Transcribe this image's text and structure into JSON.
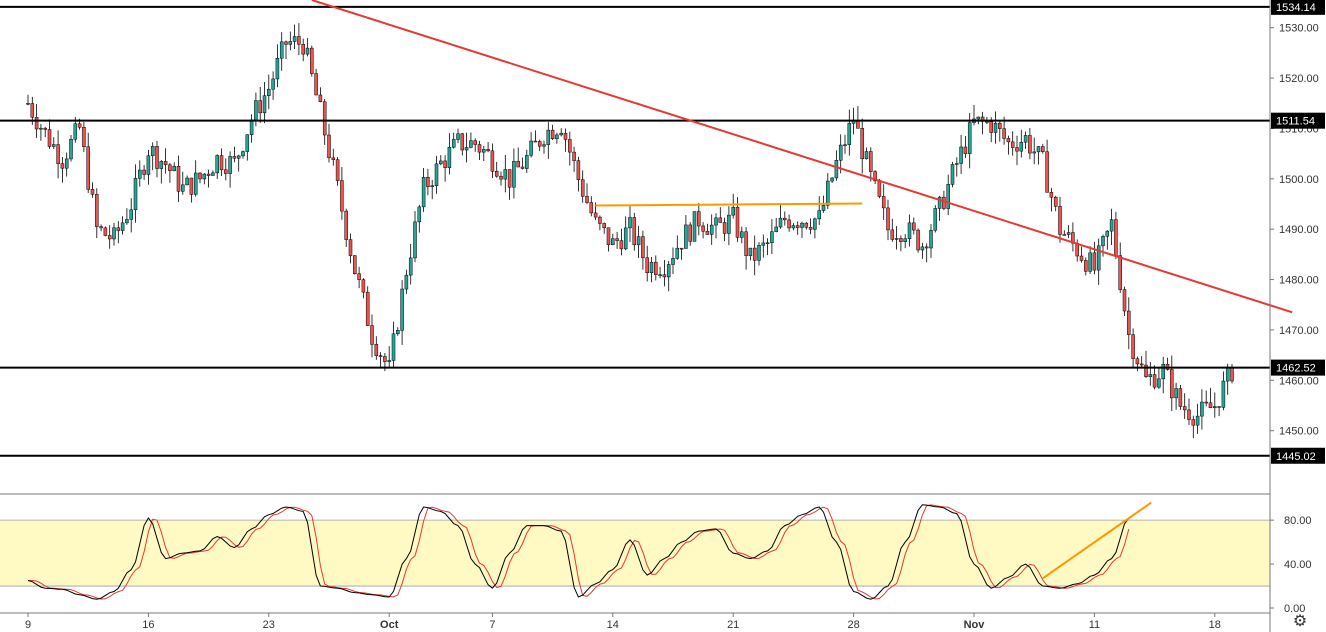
{
  "colors": {
    "up": "#26a69a",
    "down": "#ef5350",
    "wick": "#000000",
    "trendline": "#e53935",
    "orange": "#ff9800",
    "level": "#000000",
    "stoch_band": "#fff9c4",
    "stoch_k": "#000000",
    "stoch_d": "#e53935"
  },
  "settings_icon": "gear-icon",
  "chart_data": [
    {
      "type": "candlestick",
      "title": "",
      "price_ticks": [
        "1530.00",
        "1520.00",
        "1510.00",
        "1500.00",
        "1490.00",
        "1480.00",
        "1470.00",
        "1460.00",
        "1450.00"
      ],
      "price_tick_values": [
        1530,
        1520,
        1510,
        1500,
        1490,
        1480,
        1470,
        1460,
        1450
      ],
      "ylim": [
        1441,
        1535.5
      ],
      "x_labels": [
        "9",
        "16",
        "23",
        "Oct",
        "7",
        "14",
        "21",
        "28",
        "Nov",
        "11",
        "18"
      ],
      "x_label_bar_index": [
        0,
        7,
        14,
        21,
        27,
        34,
        41,
        48,
        55,
        62,
        69
      ],
      "month_labels": [
        "Oct",
        "Nov"
      ],
      "n_bars": 71,
      "close_path": [
        [
          0,
          1515
        ],
        [
          1,
          1509
        ],
        [
          2,
          1504
        ],
        [
          3,
          1510
        ],
        [
          4,
          1490
        ],
        [
          5,
          1488
        ],
        [
          6,
          1495
        ],
        [
          7,
          1506
        ],
        [
          8,
          1503
        ],
        [
          9,
          1498
        ],
        [
          10,
          1500
        ],
        [
          11,
          1504
        ],
        [
          12,
          1503
        ],
        [
          13,
          1512
        ],
        [
          14,
          1518
        ],
        [
          15,
          1527
        ],
        [
          16,
          1527
        ],
        [
          17,
          1513
        ],
        [
          18,
          1498
        ],
        [
          19,
          1482
        ],
        [
          20,
          1469
        ],
        [
          21,
          1462
        ],
        [
          22,
          1482
        ],
        [
          23,
          1498
        ],
        [
          24,
          1503
        ],
        [
          25,
          1507
        ],
        [
          26,
          1507
        ],
        [
          27,
          1504
        ],
        [
          28,
          1500
        ],
        [
          29,
          1504
        ],
        [
          30,
          1509
        ],
        [
          31,
          1511
        ],
        [
          32,
          1500
        ],
        [
          33,
          1491
        ],
        [
          34,
          1487
        ],
        [
          35,
          1490
        ],
        [
          36,
          1483
        ],
        [
          37,
          1483
        ],
        [
          38,
          1488
        ],
        [
          39,
          1492
        ],
        [
          40,
          1490
        ],
        [
          41,
          1492
        ],
        [
          42,
          1484
        ],
        [
          43,
          1487
        ],
        [
          44,
          1492
        ],
        [
          45,
          1492
        ],
        [
          46,
          1492
        ],
        [
          47,
          1503
        ],
        [
          48,
          1512
        ],
        [
          49,
          1500
        ],
        [
          50,
          1490
        ],
        [
          51,
          1490
        ],
        [
          52,
          1487
        ],
        [
          53,
          1494
        ],
        [
          54,
          1503
        ],
        [
          55,
          1511
        ],
        [
          56,
          1511
        ],
        [
          57,
          1507
        ],
        [
          58,
          1508
        ],
        [
          59,
          1503
        ],
        [
          60,
          1490
        ],
        [
          61,
          1486
        ],
        [
          62,
          1482
        ],
        [
          63,
          1491
        ],
        [
          64,
          1469
        ],
        [
          65,
          1460
        ],
        [
          66,
          1462
        ],
        [
          67,
          1455
        ],
        [
          68,
          1453
        ],
        [
          69,
          1455
        ],
        [
          70,
          1462
        ]
      ],
      "levels": [
        {
          "label": "1534.14",
          "value": 1534.14
        },
        {
          "label": "1511.54",
          "value": 1511.54
        },
        {
          "label": "1462.52",
          "value": 1462.52
        },
        {
          "label": "1445.02",
          "value": 1445.02
        }
      ],
      "trendline": {
        "from": [
          16.5,
          1535.5
        ],
        "to": [
          73.5,
          1473.5
        ]
      },
      "orange_line": {
        "from": [
          33,
          1494.7
        ],
        "to": [
          48.5,
          1495.1
        ]
      }
    },
    {
      "type": "line",
      "title": "",
      "yticks": [
        "80.00",
        "40.00",
        "0.00"
      ],
      "ytick_values": [
        80,
        40,
        0
      ],
      "ylim": [
        0,
        102
      ],
      "band": [
        20,
        80
      ],
      "series": [
        {
          "role": "k",
          "values": [
            [
              0,
              25
            ],
            [
              1,
              18
            ],
            [
              2,
              17
            ],
            [
              3,
              12
            ],
            [
              4,
              8
            ],
            [
              5,
              15
            ],
            [
              6,
              35
            ],
            [
              7,
              82
            ],
            [
              8,
              45
            ],
            [
              9,
              50
            ],
            [
              10,
              52
            ],
            [
              11,
              65
            ],
            [
              12,
              55
            ],
            [
              13,
              72
            ],
            [
              14,
              85
            ],
            [
              15,
              92
            ],
            [
              16,
              88
            ],
            [
              17,
              20
            ],
            [
              18,
              18
            ],
            [
              19,
              14
            ],
            [
              20,
              12
            ],
            [
              21,
              10
            ],
            [
              22,
              45
            ],
            [
              23,
              92
            ],
            [
              24,
              88
            ],
            [
              25,
              75
            ],
            [
              26,
              40
            ],
            [
              27,
              18
            ],
            [
              28,
              50
            ],
            [
              29,
              75
            ],
            [
              30,
              75
            ],
            [
              31,
              70
            ],
            [
              32,
              10
            ],
            [
              33,
              22
            ],
            [
              34,
              35
            ],
            [
              35,
              62
            ],
            [
              36,
              30
            ],
            [
              37,
              45
            ],
            [
              38,
              60
            ],
            [
              39,
              70
            ],
            [
              40,
              72
            ],
            [
              41,
              50
            ],
            [
              42,
              45
            ],
            [
              43,
              52
            ],
            [
              44,
              75
            ],
            [
              45,
              85
            ],
            [
              46,
              92
            ],
            [
              47,
              60
            ],
            [
              48,
              15
            ],
            [
              49,
              8
            ],
            [
              50,
              20
            ],
            [
              51,
              60
            ],
            [
              52,
              94
            ],
            [
              53,
              92
            ],
            [
              54,
              86
            ],
            [
              55,
              40
            ],
            [
              56,
              18
            ],
            [
              57,
              28
            ],
            [
              58,
              40
            ],
            [
              59,
              20
            ],
            [
              60,
              18
            ],
            [
              61,
              22
            ],
            [
              62,
              30
            ],
            [
              63,
              45
            ],
            [
              64,
              82
            ]
          ]
        }
      ],
      "trendline": {
        "from": [
          59,
          27
        ],
        "to": [
          65.3,
          96
        ]
      }
    }
  ]
}
